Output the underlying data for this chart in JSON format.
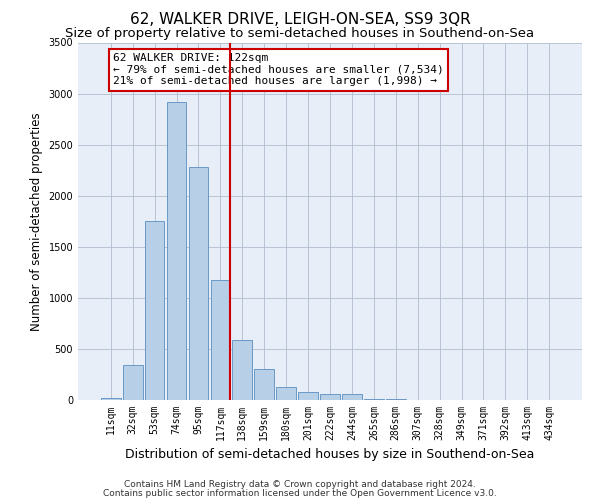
{
  "title": "62, WALKER DRIVE, LEIGH-ON-SEA, SS9 3QR",
  "subtitle": "Size of property relative to semi-detached houses in Southend-on-Sea",
  "xlabel": "Distribution of semi-detached houses by size in Southend-on-Sea",
  "ylabel": "Number of semi-detached properties",
  "footnote1": "Contains HM Land Registry data © Crown copyright and database right 2024.",
  "footnote2": "Contains public sector information licensed under the Open Government Licence v3.0.",
  "bar_labels": [
    "11sqm",
    "32sqm",
    "53sqm",
    "74sqm",
    "95sqm",
    "117sqm",
    "138sqm",
    "159sqm",
    "180sqm",
    "201sqm",
    "222sqm",
    "244sqm",
    "265sqm",
    "286sqm",
    "307sqm",
    "328sqm",
    "349sqm",
    "371sqm",
    "392sqm",
    "413sqm",
    "434sqm"
  ],
  "bar_values": [
    20,
    340,
    1750,
    2920,
    2280,
    1170,
    590,
    305,
    130,
    75,
    55,
    55,
    10,
    5,
    0,
    0,
    0,
    0,
    0,
    0,
    0
  ],
  "bar_color": "#b8cfe8",
  "bar_edgecolor": "#5a8fc0",
  "vline_index": 5,
  "vline_color": "#cc0000",
  "annotation_text": "62 WALKER DRIVE: 122sqm\n← 79% of semi-detached houses are smaller (7,534)\n21% of semi-detached houses are larger (1,998) →",
  "annotation_box_facecolor": "#ffffff",
  "annotation_box_edgecolor": "#cc0000",
  "ylim": [
    0,
    3500
  ],
  "yticks": [
    0,
    500,
    1000,
    1500,
    2000,
    2500,
    3000,
    3500
  ],
  "background_color": "#e8eef8",
  "title_fontsize": 11,
  "subtitle_fontsize": 9.5,
  "xlabel_fontsize": 9,
  "ylabel_fontsize": 8.5,
  "tick_fontsize": 7,
  "annotation_fontsize": 8,
  "footnote_fontsize": 6.5
}
